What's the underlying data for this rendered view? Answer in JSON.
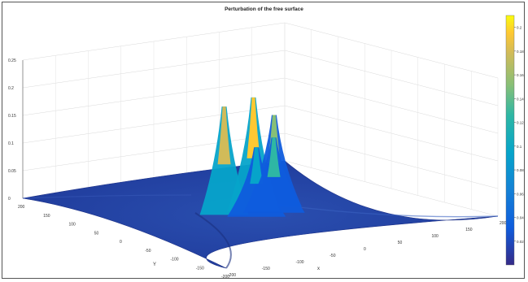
{
  "chart_data": {
    "type": "surface",
    "title": "Perturbation of the free surface",
    "xlabel": "x",
    "ylabel": "Y",
    "zlabel": "",
    "xlim": [
      -200,
      200
    ],
    "ylim": [
      -200,
      200
    ],
    "zlim": [
      0,
      0.25
    ],
    "x_ticks": [
      "-200",
      "-150",
      "-100",
      "-50",
      "0",
      "50",
      "100",
      "150",
      "200"
    ],
    "y_ticks": [
      "200",
      "150",
      "100",
      "50",
      "0",
      "-50",
      "-100",
      "-150",
      "-200"
    ],
    "z_ticks": [
      "0",
      "0.05",
      "0.1",
      "0.15",
      "0.2",
      "0.25"
    ],
    "colorbar_ticks": [
      "0.02",
      "0.04",
      "0.06",
      "0.08",
      "0.1",
      "0.12",
      "0.14",
      "0.16",
      "0.18",
      "0.2"
    ],
    "colorbar_range": [
      0,
      0.21
    ],
    "grid": true,
    "peaks": [
      {
        "x": -35,
        "y": 20,
        "z": 0.19
      },
      {
        "x": 5,
        "y": 15,
        "z": 0.2
      },
      {
        "x": 40,
        "y": 20,
        "z": 0.16
      },
      {
        "x": -10,
        "y": -10,
        "z": 0.12
      },
      {
        "x": 20,
        "y": -5,
        "z": 0.13
      }
    ]
  }
}
